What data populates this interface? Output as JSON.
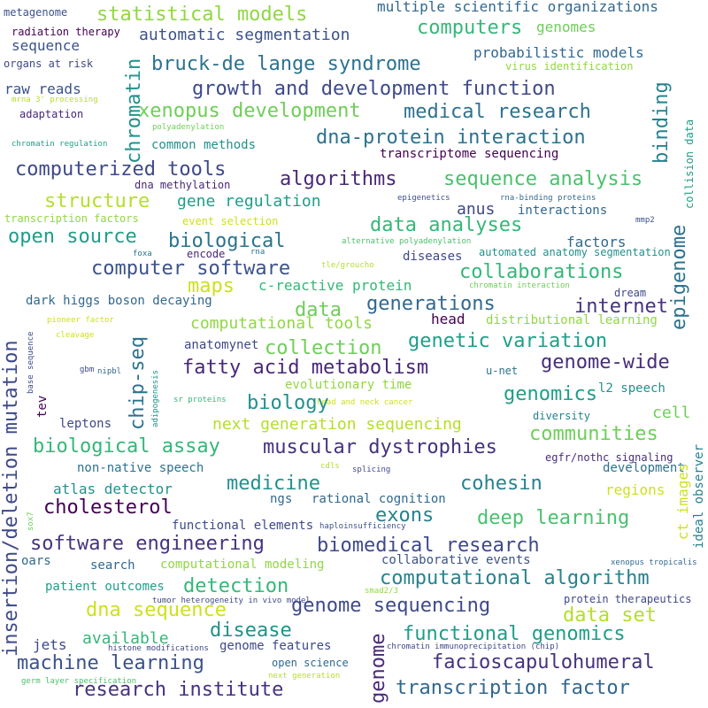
{
  "words": [
    {
      "text": "metagenome",
      "color": "#3b528b"
    },
    {
      "text": "radiation therapy",
      "color": "#440154"
    },
    {
      "text": "statistical models",
      "color": "#90d743"
    },
    {
      "text": "multiple scientific organizations",
      "color": "#31688e"
    },
    {
      "text": "computers",
      "color": "#35b779"
    },
    {
      "text": "genomes",
      "color": "#6ece58"
    },
    {
      "text": "chromatin",
      "color": "#21918c"
    },
    {
      "text": "automatic segmentation",
      "color": "#3b528b"
    },
    {
      "text": "sequence",
      "color": "#3b528b"
    },
    {
      "text": "probabilistic models",
      "color": "#31688e"
    },
    {
      "text": "bruck-de lange syndrome",
      "color": "#2c728e"
    },
    {
      "text": "organs at risk",
      "color": "#3e4989"
    },
    {
      "text": "virus identification",
      "color": "#90d743"
    },
    {
      "text": "raw reads",
      "color": "#3b528b"
    },
    {
      "text": "growth and development function",
      "color": "#3e4989"
    },
    {
      "text": "mrna 3' processing",
      "color": "#b5de2b"
    },
    {
      "text": "xenopus development",
      "color": "#6ece58"
    },
    {
      "text": "medical research",
      "color": "#2c728e"
    },
    {
      "text": "adaptation",
      "color": "#482878"
    },
    {
      "text": "binding",
      "color": "#26828e"
    },
    {
      "text": "collision data",
      "color": "#1f9e89"
    },
    {
      "text": "polyadenylation",
      "color": "#6ece58"
    },
    {
      "text": "common methods",
      "color": "#21918c"
    },
    {
      "text": "dna-protein interaction",
      "color": "#2c728e"
    },
    {
      "text": "chromatin regulation",
      "color": "#1f9e89"
    },
    {
      "text": "transcriptome sequencing",
      "color": "#440154"
    },
    {
      "text": "computerized tools",
      "color": "#3e4989"
    },
    {
      "text": "algorithms",
      "color": "#482878"
    },
    {
      "text": "sequence analysis",
      "color": "#4ac16d"
    },
    {
      "text": "dna methylation",
      "color": "#482878"
    },
    {
      "text": "structure",
      "color": "#b5de2b"
    },
    {
      "text": "gene regulation",
      "color": "#1f9e89"
    },
    {
      "text": "epigenetics",
      "color": "#3b528b"
    },
    {
      "text": "rna-binding proteins",
      "color": "#31688e"
    },
    {
      "text": "transcription factors",
      "color": "#90d743"
    },
    {
      "text": "event selection",
      "color": "#cde11d"
    },
    {
      "text": "anus",
      "color": "#3e4989"
    },
    {
      "text": "interactions",
      "color": "#31688e"
    },
    {
      "text": "data analyses",
      "color": "#35b779"
    },
    {
      "text": "mmp2",
      "color": "#3b528b"
    },
    {
      "text": "open source",
      "color": "#1f9e89"
    },
    {
      "text": "biological",
      "color": "#2c728e"
    },
    {
      "text": "factors",
      "color": "#31688e"
    },
    {
      "text": "alternative polyadenylation",
      "color": "#4ac16d"
    },
    {
      "text": "foxa",
      "color": "#2c728e"
    },
    {
      "text": "encode",
      "color": "#482878"
    },
    {
      "text": "rna",
      "color": "#2c728e"
    },
    {
      "text": "diseases",
      "color": "#3e4989"
    },
    {
      "text": "automated anatomy segmentation",
      "color": "#21918c"
    },
    {
      "text": "tle/groucho",
      "color": "#b5de2b"
    },
    {
      "text": "computer software",
      "color": "#3b528b"
    },
    {
      "text": "collaborations",
      "color": "#35b779"
    },
    {
      "text": "epigenome",
      "color": "#2c728e"
    },
    {
      "text": "maps",
      "color": "#cde11d"
    },
    {
      "text": "c-reactive protein",
      "color": "#35b779"
    },
    {
      "text": "chromatin interaction",
      "color": "#6ece58"
    },
    {
      "text": "insertion/deletion mutation",
      "color": "#3e4989"
    },
    {
      "text": "chip-seq",
      "color": "#2c728e"
    },
    {
      "text": "dark higgs boson decaying",
      "color": "#31688e"
    },
    {
      "text": "data",
      "color": "#6ece58"
    },
    {
      "text": "generations",
      "color": "#31688e"
    },
    {
      "text": "internet",
      "color": "#46327e"
    },
    {
      "text": "dream",
      "color": "#3e4989"
    },
    {
      "text": "head",
      "color": "#440154"
    },
    {
      "text": "pioneer factor",
      "color": "#cde11d"
    },
    {
      "text": "computational tools",
      "color": "#90d743"
    },
    {
      "text": "distributional learning",
      "color": "#90d743"
    },
    {
      "text": "cleavage",
      "color": "#cde11d"
    },
    {
      "text": "anatomynet",
      "color": "#3e4989"
    },
    {
      "text": "collection",
      "color": "#6ece58"
    },
    {
      "text": "genetic variation",
      "color": "#1f9e89"
    },
    {
      "text": "base sequence",
      "color": "#3e4989"
    },
    {
      "text": "gbm",
      "color": "#3e4989"
    },
    {
      "text": "nipbl",
      "color": "#31688e"
    },
    {
      "text": "fatty acid metabolism",
      "color": "#482878"
    },
    {
      "text": "genome-wide",
      "color": "#472d7b"
    },
    {
      "text": "u-net",
      "color": "#2c728e"
    },
    {
      "text": "adipogenesis",
      "color": "#21918c"
    },
    {
      "text": "evolutionary time",
      "color": "#90d743"
    },
    {
      "text": "sr proteins",
      "color": "#35b779"
    },
    {
      "text": "head and neck cancer",
      "color": "#cde11d"
    },
    {
      "text": "genomics",
      "color": "#1f9e89"
    },
    {
      "text": "l2 speech",
      "color": "#21918c"
    },
    {
      "text": "biology",
      "color": "#21918c"
    },
    {
      "text": "tev",
      "color": "#440154"
    },
    {
      "text": "leptons",
      "color": "#3e4989"
    },
    {
      "text": "next generation sequencing",
      "color": "#b5de2b"
    },
    {
      "text": "diversity",
      "color": "#26828e"
    },
    {
      "text": "cell",
      "color": "#6ece58"
    },
    {
      "text": "communities",
      "color": "#6ece58"
    },
    {
      "text": "biological assay",
      "color": "#35b779"
    },
    {
      "text": "muscular dystrophies",
      "color": "#46327e"
    },
    {
      "text": "non-native speech",
      "color": "#2c728e"
    },
    {
      "text": "cdls",
      "color": "#b5de2b"
    },
    {
      "text": "splicing",
      "color": "#3e4989"
    },
    {
      "text": "egfr/nothc signaling",
      "color": "#472d7b"
    },
    {
      "text": "development",
      "color": "#2c728e"
    },
    {
      "text": "ct images",
      "color": "#cde11d"
    },
    {
      "text": "ideal observer",
      "color": "#26828e"
    },
    {
      "text": "medicine",
      "color": "#21918c"
    },
    {
      "text": "cohesin",
      "color": "#26828e"
    },
    {
      "text": "atlas detector",
      "color": "#21918c"
    },
    {
      "text": "cholesterol",
      "color": "#440154"
    },
    {
      "text": "ngs",
      "color": "#31688e"
    },
    {
      "text": "rational cognition",
      "color": "#31688e"
    },
    {
      "text": "regions",
      "color": "#cde11d"
    },
    {
      "text": "exons",
      "color": "#26828e"
    },
    {
      "text": "deep learning",
      "color": "#4ac16d"
    },
    {
      "text": "functional elements",
      "color": "#3e4989"
    },
    {
      "text": "haploinsufficiency",
      "color": "#3b528b"
    },
    {
      "text": "sox7",
      "color": "#6ece58"
    },
    {
      "text": "software engineering",
      "color": "#46327e"
    },
    {
      "text": "biomedical research",
      "color": "#3e4989"
    },
    {
      "text": "oars",
      "color": "#31688e"
    },
    {
      "text": "search",
      "color": "#31688e"
    },
    {
      "text": "computational modeling",
      "color": "#90d743"
    },
    {
      "text": "collaborative events",
      "color": "#3b528b"
    },
    {
      "text": "xenopus tropicalis",
      "color": "#31688e"
    },
    {
      "text": "patient outcomes",
      "color": "#1f9e89"
    },
    {
      "text": "detection",
      "color": "#35b779"
    },
    {
      "text": "computational algorithm",
      "color": "#26828e"
    },
    {
      "text": "smad2/3",
      "color": "#90d743"
    },
    {
      "text": "dna sequence",
      "color": "#cde11d"
    },
    {
      "text": "tumor heterogeneity in vivo model",
      "color": "#3e4989"
    },
    {
      "text": "genome sequencing",
      "color": "#3e4989"
    },
    {
      "text": "data set",
      "color": "#b5de2b"
    },
    {
      "text": "protein therapeutics",
      "color": "#3e4989"
    },
    {
      "text": "jets",
      "color": "#3e4989"
    },
    {
      "text": "available",
      "color": "#35b779"
    },
    {
      "text": "disease",
      "color": "#21918c"
    },
    {
      "text": "genome",
      "color": "#482878"
    },
    {
      "text": "functional genomics",
      "color": "#1f9e89"
    },
    {
      "text": "genome features",
      "color": "#3e4989"
    },
    {
      "text": "machine learning",
      "color": "#3b528b"
    },
    {
      "text": "histone modifications",
      "color": "#3e4989"
    },
    {
      "text": "chromatin immunoprecipitation (chip)",
      "color": "#3e4989"
    },
    {
      "text": "open science",
      "color": "#31688e"
    },
    {
      "text": "facioscapulohumeral",
      "color": "#46327e"
    },
    {
      "text": "germ layer specification",
      "color": "#4ac16d"
    },
    {
      "text": "next generation",
      "color": "#b5de2b"
    },
    {
      "text": "research institute",
      "color": "#46327e"
    },
    {
      "text": "transcription factor",
      "color": "#31688e"
    }
  ]
}
